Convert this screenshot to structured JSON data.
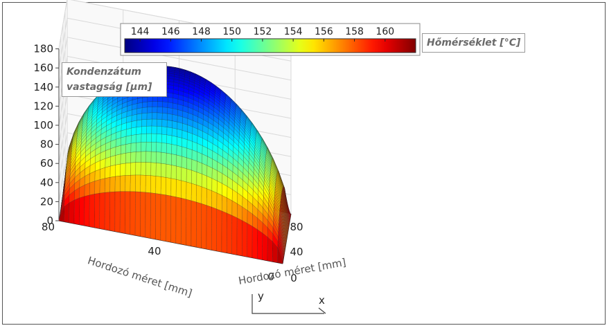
{
  "chart_data": {
    "type": "surface",
    "zlabel": "Kondenzátum vastagság [µm]",
    "xlabel": "Hordozó méret [mm]",
    "ylabel": "Hordozó méret [mm]",
    "colorbar_label": "Hőmérséklet [°C]",
    "colorbar_ticks": [
      "144",
      "146",
      "148",
      "150",
      "152",
      "154",
      "156",
      "158",
      "160"
    ],
    "colorbar_range": [
      143,
      162
    ],
    "z_ticks": [
      "0",
      "20",
      "40",
      "60",
      "80",
      "100",
      "120",
      "140",
      "160",
      "180"
    ],
    "zlim": [
      0,
      180
    ],
    "x_ticks": [
      "0",
      "40",
      "80"
    ],
    "y_ticks": [
      "0",
      "40",
      "80"
    ],
    "axis_letters": {
      "x": "x",
      "y": "y"
    },
    "xlim": [
      0,
      80
    ],
    "ylim": [
      0,
      80
    ],
    "surface": {
      "center_thickness": 155,
      "side_midpoint_thickness": 50,
      "corner_thickness": 0,
      "center_temperature": 144,
      "corner_temperature": 162
    },
    "grid": true
  }
}
